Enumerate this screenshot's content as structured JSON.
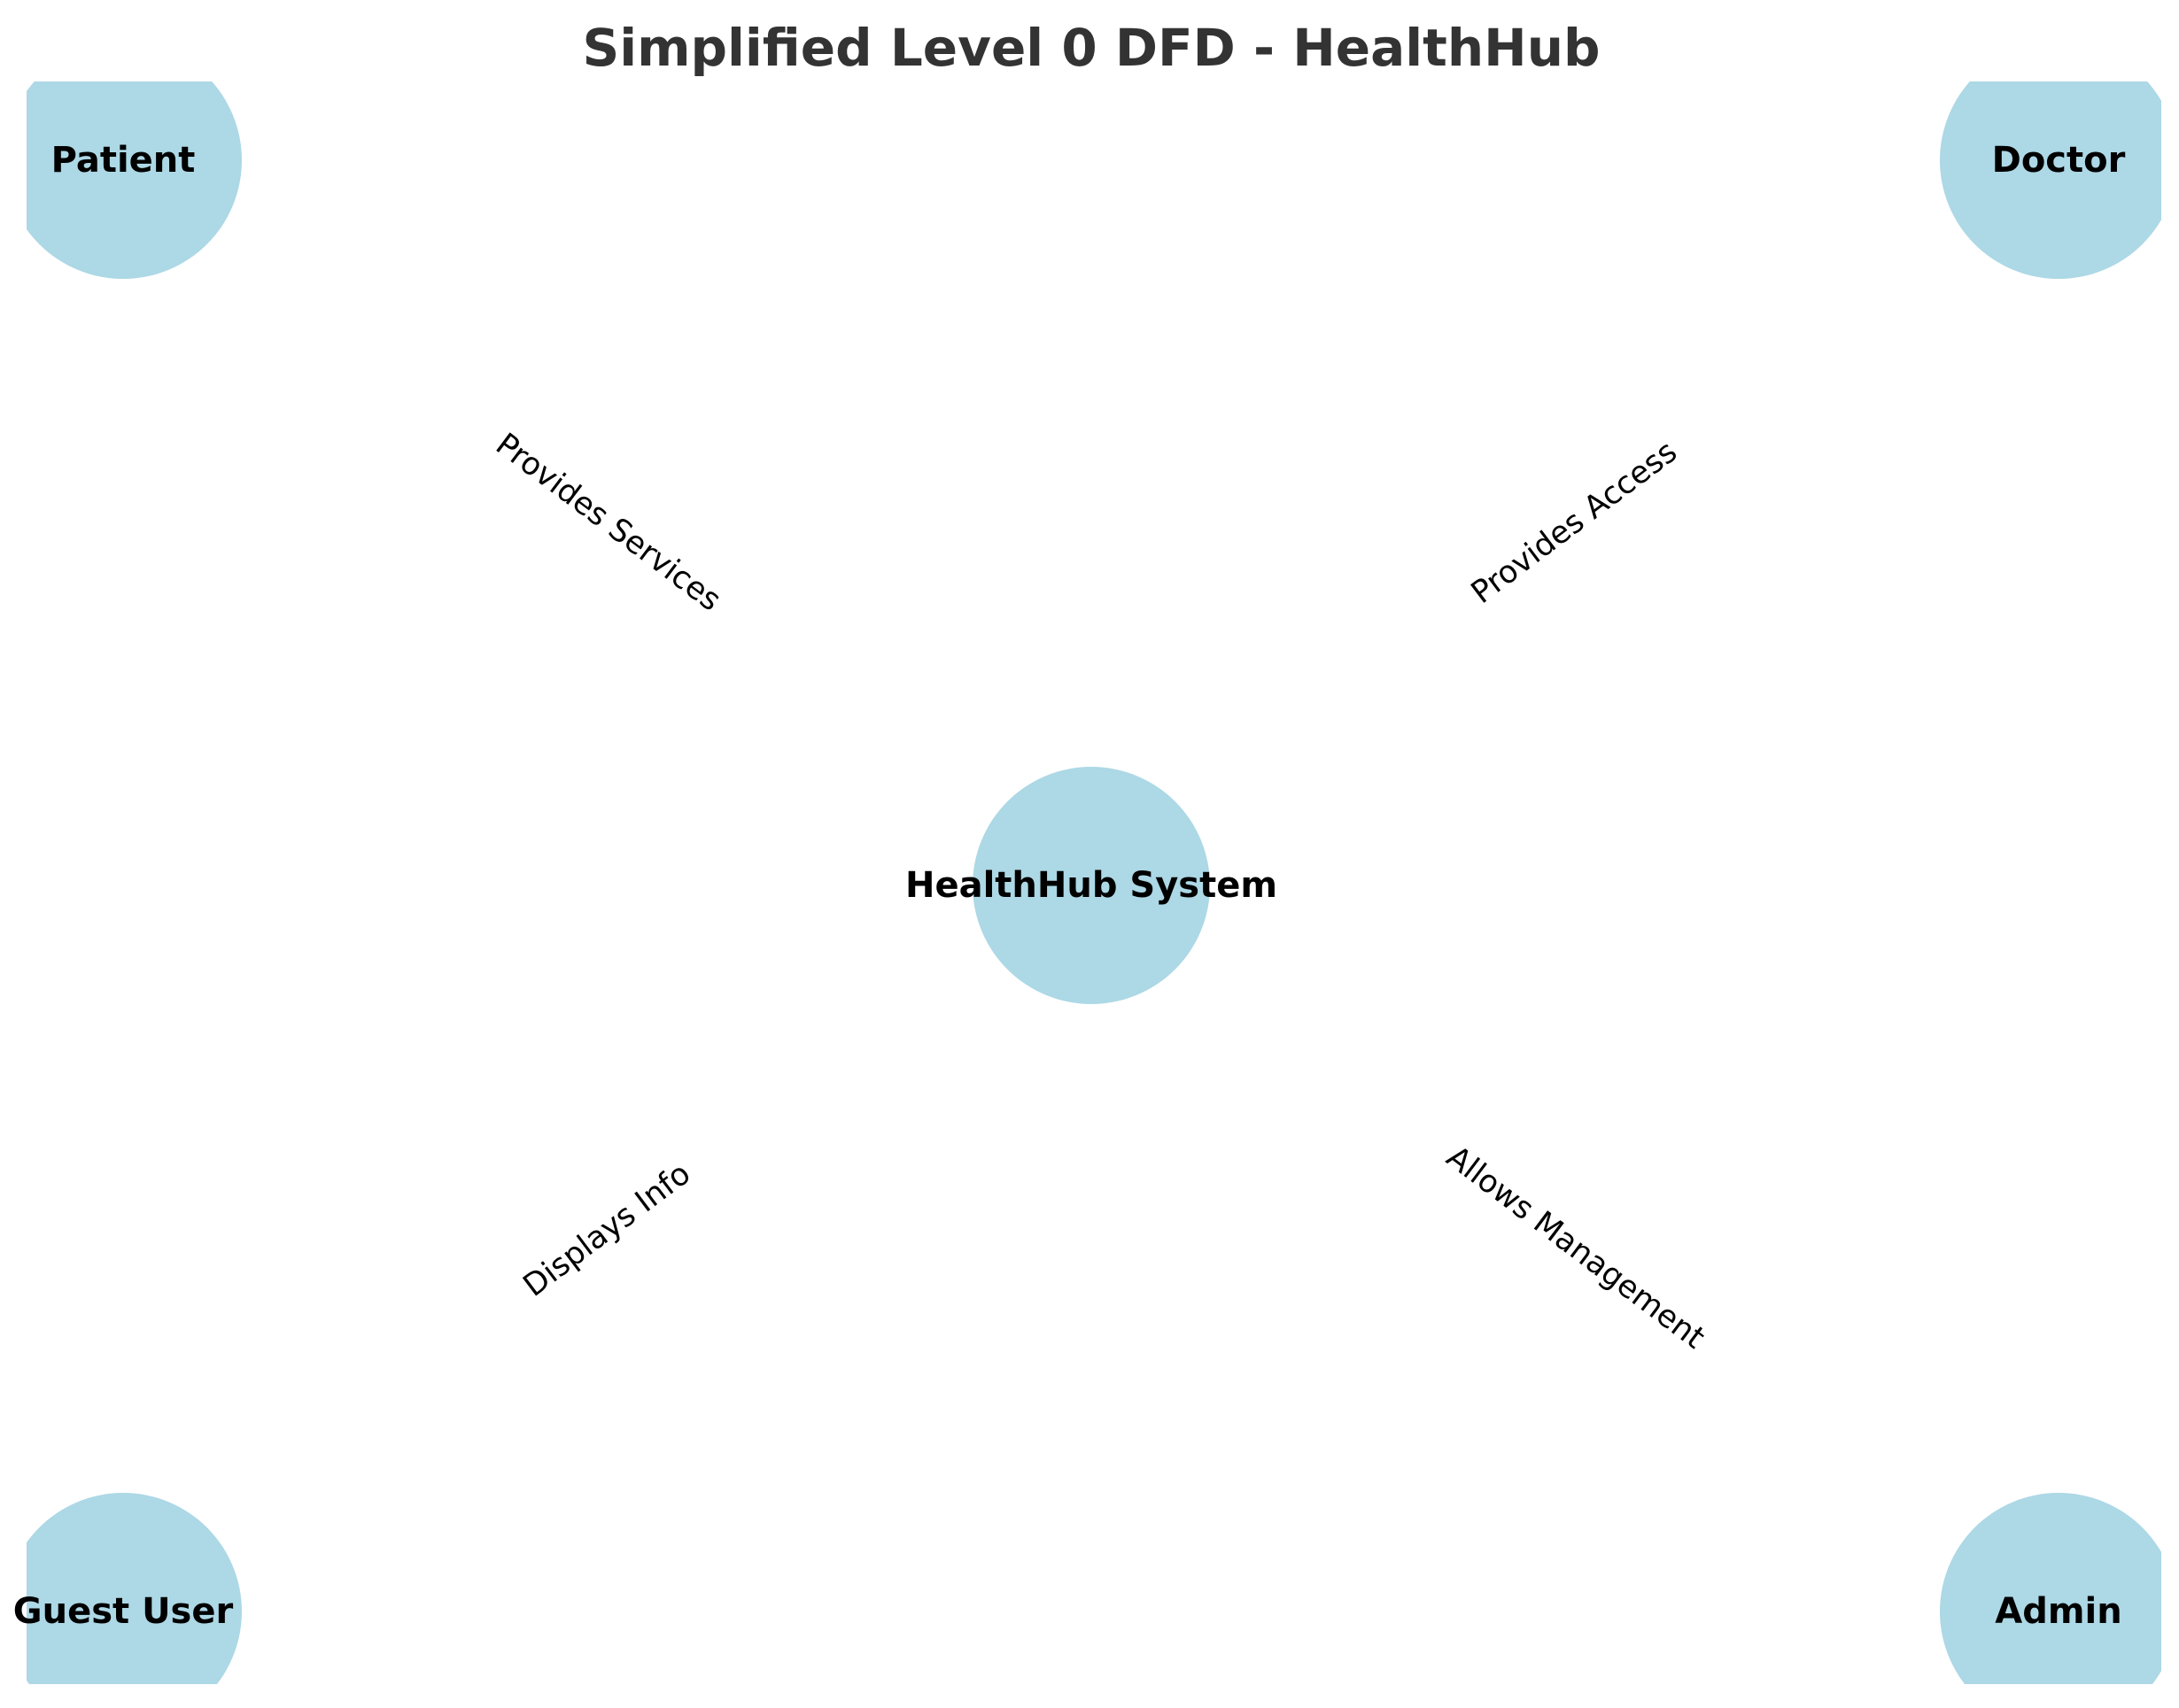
{
  "title": "Simplified Level 0 DFD - HealthHub",
  "colors": {
    "node_fill": "#add8e6",
    "title": "#333333",
    "text": "#000000",
    "background": "#ffffff"
  },
  "nodes": {
    "patient": {
      "label": "Patient"
    },
    "doctor": {
      "label": "Doctor"
    },
    "system": {
      "label": "HealthHub System"
    },
    "guest": {
      "label": "Guest User"
    },
    "admin": {
      "label": "Admin"
    }
  },
  "edges": {
    "patient_system": {
      "label": "Provides Services"
    },
    "doctor_system": {
      "label": "Provides Access"
    },
    "guest_system": {
      "label": "Displays Info"
    },
    "admin_system": {
      "label": "Allows Management"
    }
  }
}
